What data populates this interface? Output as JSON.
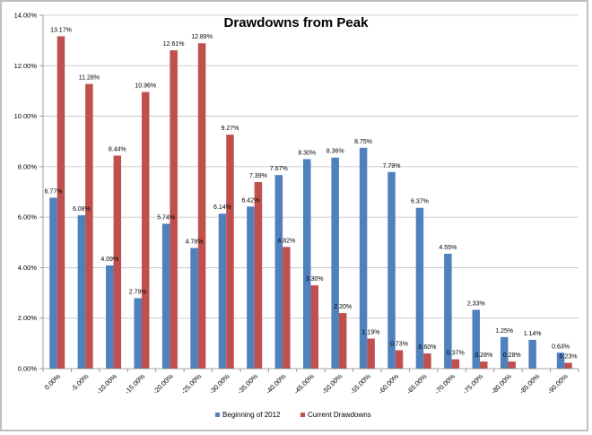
{
  "chart_data": {
    "type": "bar",
    "title": "Drawdowns from Peak",
    "xlabel": "",
    "ylabel": "",
    "ylim": [
      0,
      14
    ],
    "y_ticks": [
      "0.00%",
      "2.00%",
      "4.00%",
      "6.00%",
      "8.00%",
      "10.00%",
      "12.00%",
      "14.00%"
    ],
    "y_tick_values": [
      0,
      2,
      4,
      6,
      8,
      10,
      12,
      14
    ],
    "grid": true,
    "legend_position": "bottom",
    "categories": [
      "0.00%",
      "-5.00%",
      "-10.00%",
      "-15.00%",
      "-20.00%",
      "-25.00%",
      "-30.00%",
      "-35.00%",
      "-40.00%",
      "-45.00%",
      "-50.00%",
      "-55.00%",
      "-60.00%",
      "-65.00%",
      "-70.00%",
      "-75.00%",
      "-80.00%",
      "-85.00%",
      "-90.00%"
    ],
    "series": [
      {
        "name": "Beginning of 2012",
        "color": "#4f81bd",
        "values": [
          6.77,
          6.08,
          4.09,
          2.79,
          5.74,
          4.78,
          6.14,
          6.42,
          7.67,
          8.3,
          8.36,
          8.75,
          7.79,
          6.37,
          4.55,
          2.33,
          1.25,
          1.14,
          0.63
        ],
        "labels": [
          "6.77%",
          "6.08%",
          "4.09%",
          "2.79%",
          "5.74%",
          "4.78%",
          "6.14%",
          "6.42%",
          "7.67%",
          "8.30%",
          "8.36%",
          "8.75%",
          "7.79%",
          "6.37%",
          "4.55%",
          "2.33%",
          "1.25%",
          "1.14%",
          "0.63%"
        ]
      },
      {
        "name": "Current Drawdowns",
        "color": "#c0504d",
        "values": [
          13.17,
          11.28,
          8.44,
          10.96,
          12.61,
          12.89,
          9.27,
          7.39,
          4.82,
          3.3,
          2.2,
          1.19,
          0.73,
          0.6,
          0.37,
          0.28,
          0.28,
          null,
          0.23
        ],
        "labels": [
          "13.17%",
          "11.28%",
          "8.44%",
          "10.96%",
          "12.61%",
          "12.89%",
          "9.27%",
          "7.39%",
          "4.82%",
          "3.30%",
          "2.20%",
          "1.19%",
          "0.73%",
          "0.60%",
          "0.37%",
          "0.28%",
          "0.28%",
          null,
          "0.23%"
        ]
      }
    ]
  }
}
